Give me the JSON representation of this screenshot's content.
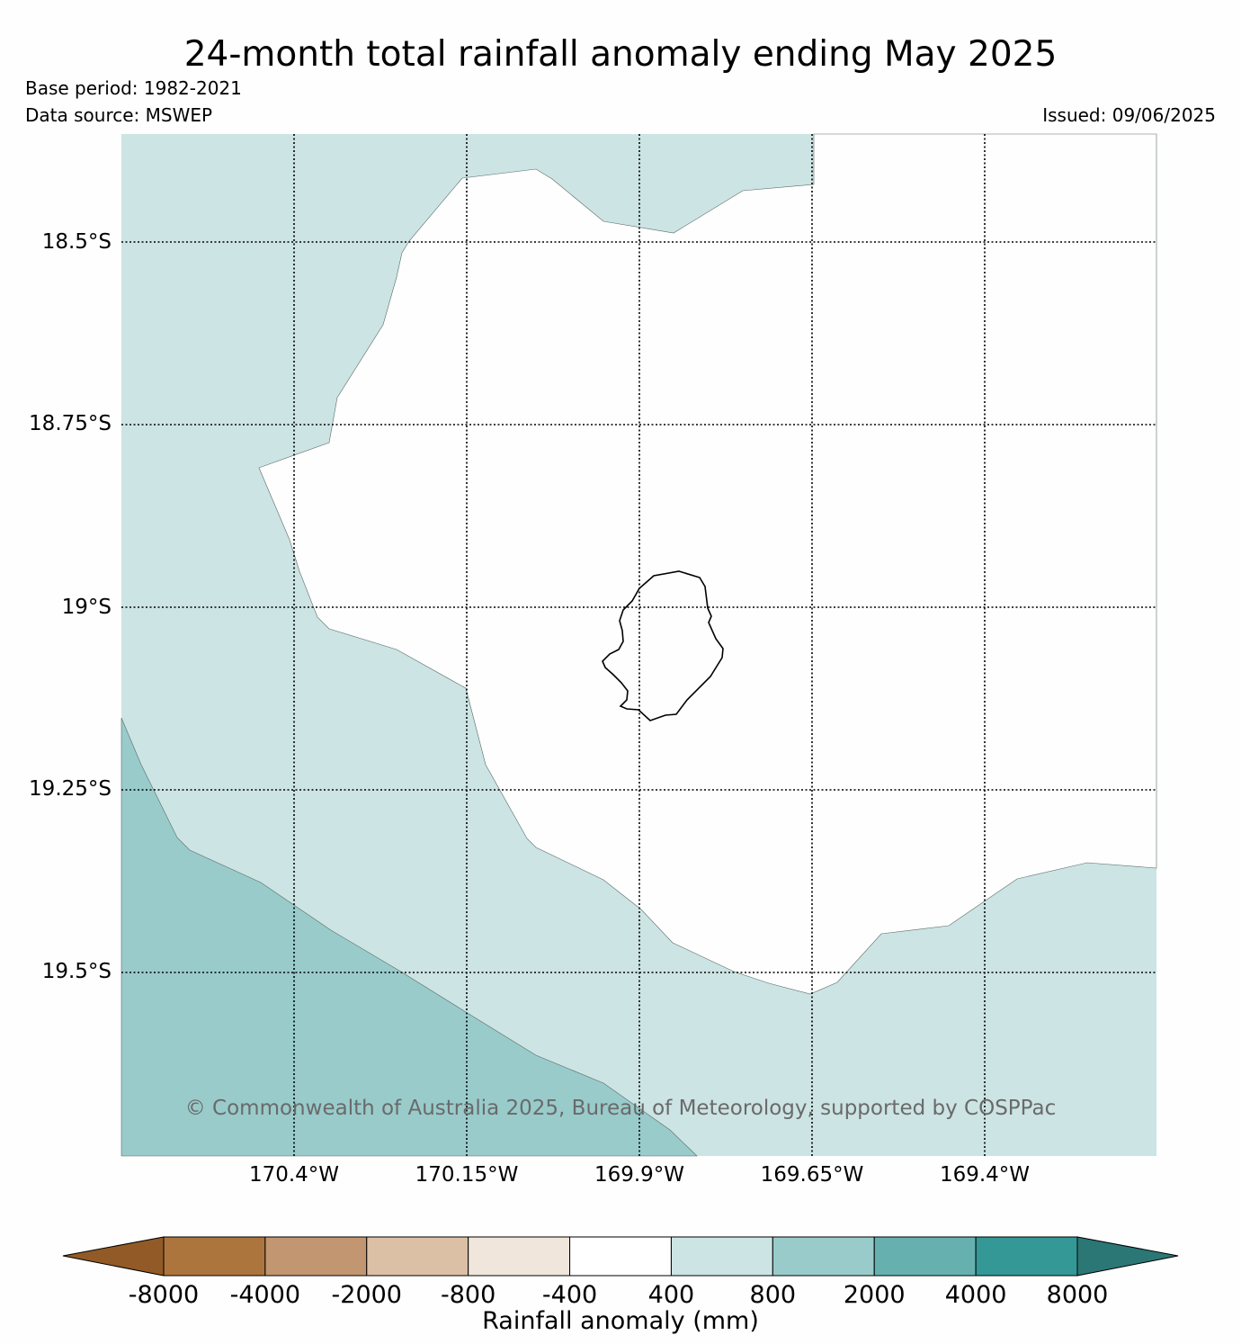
{
  "title": "24-month total rainfall anomaly ending May 2025",
  "base_period": "Base period: 1982-2021",
  "data_source": "Data source: MSWEP",
  "issued": "Issued: 09/06/2025",
  "copyright": "© Commonwealth of Australia 2025, Bureau of Meteorology, supported by COSPPac",
  "latitude_labels": [
    "18.5°S",
    "18.75°S",
    "19°S",
    "19.25°S",
    "19.5°S"
  ],
  "longitude_labels": [
    "170.4°W",
    "170.15°W",
    "169.9°W",
    "169.65°W",
    "169.4°W"
  ],
  "colorbar": {
    "title": "Rainfall anomaly (mm)",
    "ticks": [
      "-8000",
      "-4000",
      "-2000",
      "-800",
      "-400",
      "400",
      "800",
      "2000",
      "4000",
      "8000"
    ],
    "colors": [
      "#925a26",
      "#ac753e",
      "#c29670",
      "#dbc0a6",
      "#f1e6db",
      "#ffffff",
      "#cce4e3",
      "#99cbcb",
      "#66b1b0",
      "#339896",
      "#2b7775"
    ]
  },
  "map": {
    "region": "Niue",
    "background_anomaly_class": "400 to 800",
    "zones": [
      {
        "range": "-400 to 400",
        "color": "#ffffff"
      },
      {
        "range": "400 to 800",
        "color": "#cce4e3"
      },
      {
        "range": "800 to 2000",
        "color": "#99cbcb"
      }
    ]
  }
}
